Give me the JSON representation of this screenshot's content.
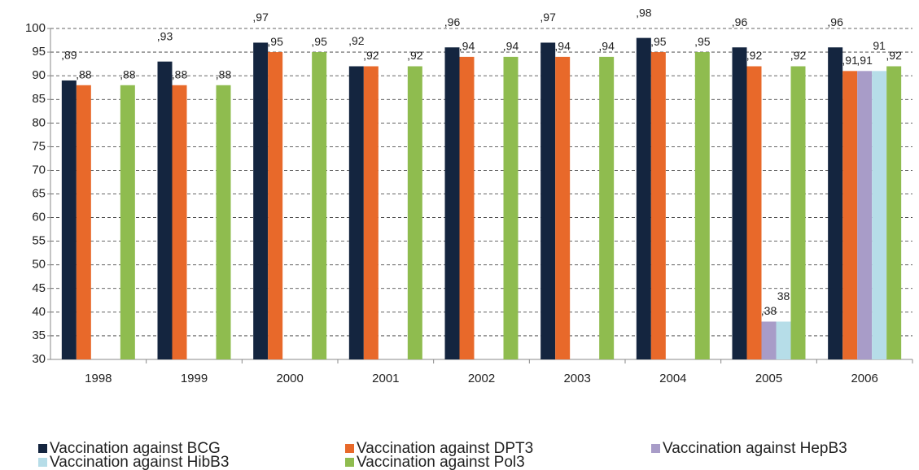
{
  "chart_data": {
    "type": "bar",
    "categories": [
      "1998",
      "1999",
      "2000",
      "2001",
      "2002",
      "2003",
      "2004",
      "2005",
      "2006"
    ],
    "series": [
      {
        "name": "Vaccination against BCG",
        "color": "#14253f",
        "values": [
          89,
          93,
          97,
          92,
          96,
          97,
          98,
          96,
          96
        ],
        "value_labels": [
          ",89",
          ",93",
          ",97",
          ",92",
          ",96",
          ",97",
          ",98",
          ",96",
          ",96"
        ]
      },
      {
        "name": "Vaccination against DPT3",
        "color": "#e8692a",
        "values": [
          88,
          88,
          95,
          92,
          94,
          94,
          95,
          92,
          91
        ],
        "value_labels": [
          ",88",
          ",88",
          ",95",
          ",92",
          ",94",
          ",94",
          ",95",
          ",92",
          ",91"
        ]
      },
      {
        "name": "Vaccination against HepB3",
        "color": "#a89cc8",
        "values": [
          null,
          null,
          null,
          null,
          null,
          null,
          null,
          38,
          91
        ],
        "value_labels": [
          null,
          null,
          null,
          null,
          null,
          null,
          null,
          ",38",
          ",91"
        ]
      },
      {
        "name": "Vaccination against HibB3",
        "color": "#b6dde8",
        "values": [
          null,
          null,
          null,
          null,
          null,
          null,
          null,
          38,
          91
        ],
        "value_labels": [
          null,
          null,
          null,
          null,
          null,
          null,
          null,
          "38",
          "91"
        ]
      },
      {
        "name": "Vaccination against Pol3",
        "color": "#8fbc4f",
        "values": [
          88,
          88,
          95,
          92,
          94,
          94,
          95,
          92,
          92
        ],
        "value_labels": [
          ",88",
          ",88",
          ",95",
          ",92",
          ",94",
          ",94",
          ",95",
          ",92",
          ",92"
        ]
      }
    ],
    "ylim": [
      30,
      100
    ],
    "yticks": [
      30,
      35,
      40,
      45,
      50,
      55,
      60,
      65,
      70,
      75,
      80,
      85,
      90,
      95,
      100
    ],
    "grid": true
  }
}
